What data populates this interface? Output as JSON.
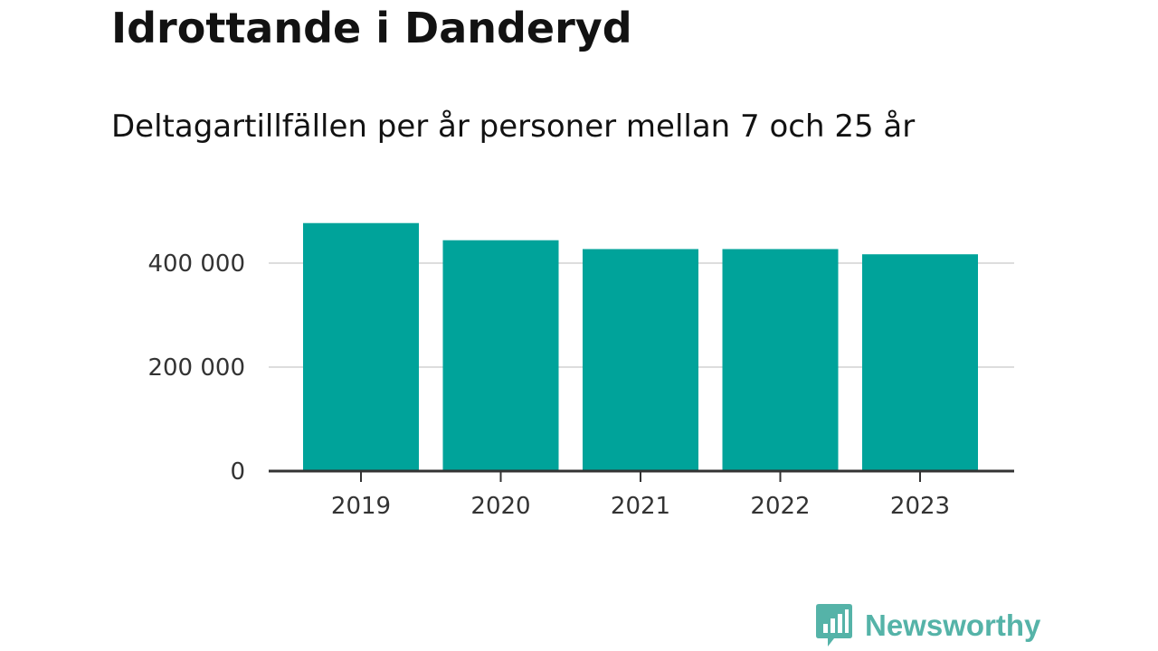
{
  "chart_data": {
    "type": "bar",
    "title": "Idrottande i Danderyd",
    "subtitle": "Deltagartillfällen per år personer mellan 7 och 25 år",
    "categories": [
      "2019",
      "2020",
      "2021",
      "2022",
      "2023"
    ],
    "values": [
      477000,
      444000,
      427000,
      427000,
      417000
    ],
    "ylim": [
      0,
      500000
    ],
    "yticks": [
      0,
      200000,
      400000
    ],
    "ytick_labels": [
      "0",
      "200 000",
      "400 000"
    ],
    "xlabel": "",
    "ylabel": "",
    "grid": true,
    "legend": "none",
    "bar_color": "#00a39a"
  },
  "brand": {
    "name": "Newsworthy",
    "icon": "newsworthy-logo-icon",
    "color": "#55b3a8"
  }
}
